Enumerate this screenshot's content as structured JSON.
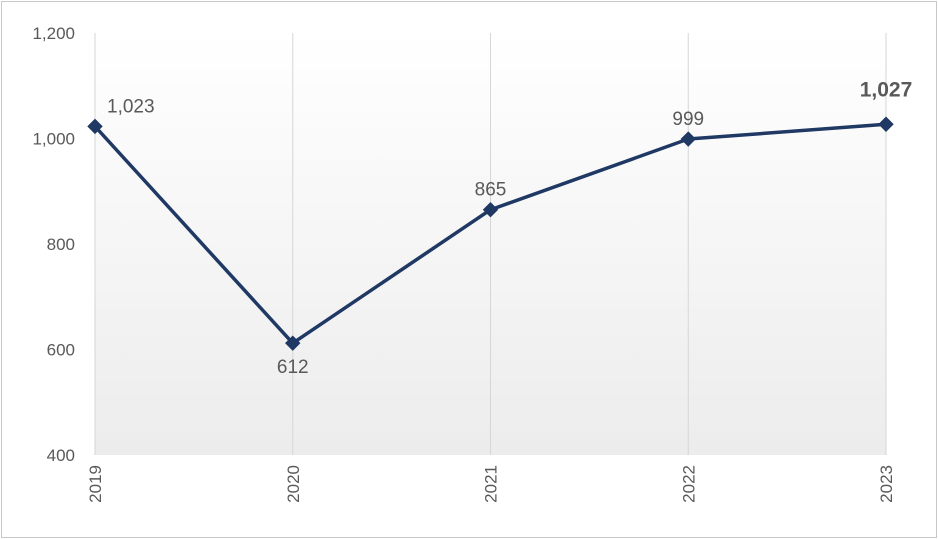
{
  "chart_data": {
    "type": "line",
    "title": "",
    "xlabel": "",
    "ylabel": "",
    "categories": [
      "2019",
      "2020",
      "2021",
      "2022",
      "2023"
    ],
    "series": [
      {
        "values": [
          1023,
          612,
          865,
          999,
          1027
        ],
        "data_labels": [
          "1,023",
          "612",
          "865",
          "999",
          "1,027"
        ],
        "color": "#1f3864",
        "marker": "diamond",
        "highlight_last": true
      }
    ],
    "ylim": [
      400,
      1200
    ],
    "yticks": [
      400,
      600,
      800,
      1000,
      1200
    ],
    "ytick_labels": [
      "400",
      "600",
      "800",
      "1,000",
      "1,200"
    ],
    "grid": "vertical",
    "legend": "none",
    "plot_background": "gradient white-to-light-gray"
  }
}
